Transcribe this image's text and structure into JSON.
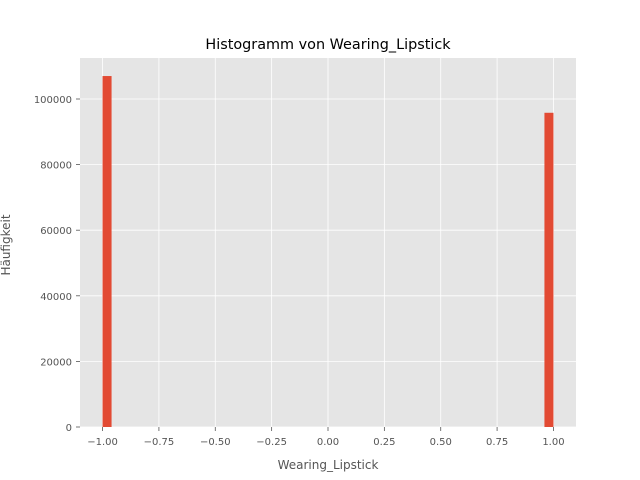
{
  "chart_data": {
    "type": "bar",
    "title": "Histogramm von Wearing_Lipstick",
    "xlabel": "Wearing_Lipstick",
    "ylabel": "Häufigkeit",
    "xlim": [
      -1.1,
      1.1
    ],
    "ylim": [
      0,
      112500
    ],
    "xticks": [
      "−1.00",
      "−0.75",
      "−0.50",
      "−0.25",
      "0.00",
      "0.25",
      "0.50",
      "0.75",
      "1.00"
    ],
    "xtick_values": [
      -1.0,
      -0.75,
      -0.5,
      -0.25,
      0.0,
      0.25,
      0.5,
      0.75,
      1.0
    ],
    "yticks": [
      "0",
      "20000",
      "40000",
      "60000",
      "80000",
      "100000"
    ],
    "ytick_values": [
      0,
      20000,
      40000,
      60000,
      80000,
      100000
    ],
    "bins": [
      {
        "x0": -1.0,
        "x1": -0.96,
        "value": 107000
      },
      {
        "x0": 0.96,
        "x1": 1.0,
        "value": 95800
      }
    ],
    "grid": true,
    "colors": {
      "bar": "#E24A33",
      "background": "#E5E5E5",
      "grid": "#FFFFFF"
    }
  }
}
